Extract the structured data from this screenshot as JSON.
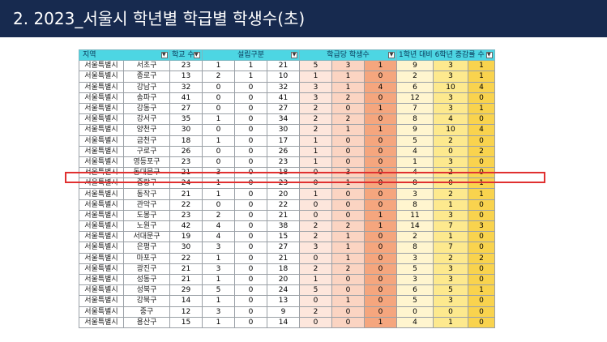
{
  "title": "2. 2023_서울시 학년별 학급별 학생수(초)",
  "headers": {
    "region": "지역",
    "school_count": "학교 수",
    "establishment": "설립구분",
    "students_per_class": "학급당 학생수",
    "change": "1학년 대비 6학년 증감률 수"
  },
  "rows": [
    {
      "city": "서울특별시",
      "gu": "서초구",
      "v": [
        "23",
        "1",
        "1",
        "21",
        "5",
        "3",
        "1",
        "9",
        "3",
        "1"
      ]
    },
    {
      "city": "서울특별시",
      "gu": "종로구",
      "v": [
        "13",
        "2",
        "1",
        "10",
        "1",
        "1",
        "0",
        "2",
        "3",
        "1"
      ]
    },
    {
      "city": "서울특별시",
      "gu": "강남구",
      "v": [
        "32",
        "0",
        "0",
        "32",
        "3",
        "1",
        "4",
        "6",
        "10",
        "4"
      ]
    },
    {
      "city": "서울특별시",
      "gu": "송파구",
      "v": [
        "41",
        "0",
        "0",
        "41",
        "3",
        "2",
        "0",
        "12",
        "3",
        "0"
      ]
    },
    {
      "city": "서울특별시",
      "gu": "강동구",
      "v": [
        "27",
        "0",
        "0",
        "27",
        "2",
        "0",
        "1",
        "7",
        "3",
        "1"
      ]
    },
    {
      "city": "서울특별시",
      "gu": "강서구",
      "v": [
        "35",
        "1",
        "0",
        "34",
        "2",
        "2",
        "0",
        "8",
        "4",
        "0"
      ]
    },
    {
      "city": "서울특별시",
      "gu": "양천구",
      "v": [
        "30",
        "0",
        "0",
        "30",
        "2",
        "1",
        "1",
        "9",
        "10",
        "4"
      ]
    },
    {
      "city": "서울특별시",
      "gu": "금천구",
      "v": [
        "18",
        "1",
        "0",
        "17",
        "1",
        "0",
        "0",
        "5",
        "2",
        "0"
      ]
    },
    {
      "city": "서울특별시",
      "gu": "구로구",
      "v": [
        "26",
        "0",
        "0",
        "26",
        "1",
        "0",
        "0",
        "4",
        "0",
        "2"
      ]
    },
    {
      "city": "서울특별시",
      "gu": "영등포구",
      "v": [
        "23",
        "0",
        "0",
        "23",
        "1",
        "0",
        "0",
        "1",
        "3",
        "0"
      ]
    },
    {
      "city": "서울특별시",
      "gu": "동대문구",
      "v": [
        "21",
        "3",
        "0",
        "18",
        "0",
        "3",
        "0",
        "4",
        "2",
        "0"
      ]
    },
    {
      "city": "서울특별시",
      "gu": "중랑구",
      "v": [
        "24",
        "1",
        "0",
        "23",
        "0",
        "1",
        "0",
        "8",
        "0",
        "1"
      ]
    },
    {
      "city": "서울특별시",
      "gu": "동작구",
      "v": [
        "21",
        "1",
        "0",
        "20",
        "1",
        "0",
        "0",
        "3",
        "2",
        "1"
      ]
    },
    {
      "city": "서울특별시",
      "gu": "관악구",
      "v": [
        "22",
        "0",
        "0",
        "22",
        "0",
        "0",
        "0",
        "8",
        "1",
        "0"
      ]
    },
    {
      "city": "서울특별시",
      "gu": "도봉구",
      "v": [
        "23",
        "2",
        "0",
        "21",
        "0",
        "0",
        "1",
        "11",
        "3",
        "0"
      ]
    },
    {
      "city": "서울특별시",
      "gu": "노원구",
      "v": [
        "42",
        "4",
        "0",
        "38",
        "2",
        "2",
        "1",
        "14",
        "7",
        "3"
      ]
    },
    {
      "city": "서울특별시",
      "gu": "서대문구",
      "v": [
        "19",
        "4",
        "0",
        "15",
        "2",
        "1",
        "0",
        "2",
        "1",
        "0"
      ]
    },
    {
      "city": "서울특별시",
      "gu": "은평구",
      "v": [
        "30",
        "3",
        "0",
        "27",
        "3",
        "1",
        "0",
        "8",
        "7",
        "0"
      ]
    },
    {
      "city": "서울특별시",
      "gu": "마포구",
      "v": [
        "22",
        "1",
        "0",
        "21",
        "0",
        "1",
        "0",
        "3",
        "2",
        "2"
      ]
    },
    {
      "city": "서울특별시",
      "gu": "광진구",
      "v": [
        "21",
        "3",
        "0",
        "18",
        "2",
        "2",
        "0",
        "5",
        "3",
        "0"
      ]
    },
    {
      "city": "서울특별시",
      "gu": "성동구",
      "v": [
        "21",
        "1",
        "0",
        "20",
        "1",
        "0",
        "0",
        "3",
        "3",
        "0"
      ]
    },
    {
      "city": "서울특별시",
      "gu": "성북구",
      "v": [
        "29",
        "5",
        "0",
        "24",
        "5",
        "0",
        "0",
        "6",
        "5",
        "1"
      ]
    },
    {
      "city": "서울특별시",
      "gu": "강북구",
      "v": [
        "14",
        "1",
        "0",
        "13",
        "0",
        "1",
        "0",
        "5",
        "3",
        "0"
      ]
    },
    {
      "city": "서울특별시",
      "gu": "중구",
      "v": [
        "12",
        "3",
        "0",
        "9",
        "2",
        "0",
        "0",
        "0",
        "0",
        "0"
      ]
    },
    {
      "city": "서울특별시",
      "gu": "용산구",
      "v": [
        "15",
        "1",
        "0",
        "14",
        "0",
        "0",
        "1",
        "4",
        "1",
        "0"
      ]
    }
  ]
}
